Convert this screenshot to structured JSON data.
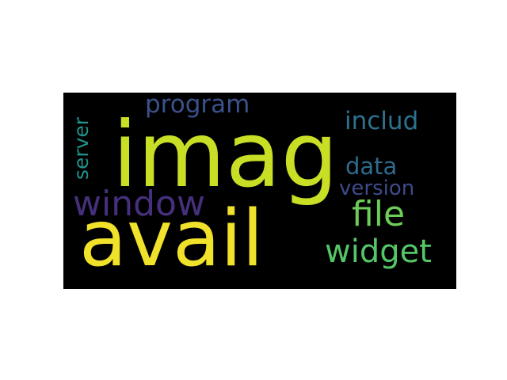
{
  "wordcloud": {
    "background": "#000000",
    "words": [
      {
        "id": "imag",
        "text": "imag",
        "color": "#c8df25"
      },
      {
        "id": "avail",
        "text": "avail",
        "color": "#f0e12a"
      },
      {
        "id": "window",
        "text": "window",
        "color": "#46307e"
      },
      {
        "id": "file",
        "text": "file",
        "color": "#6ecd5a"
      },
      {
        "id": "widget",
        "text": "widget",
        "color": "#55c667"
      },
      {
        "id": "program",
        "text": "program",
        "color": "#3b528b"
      },
      {
        "id": "includ",
        "text": "includ",
        "color": "#2c728e"
      },
      {
        "id": "data",
        "text": "data",
        "color": "#2f6b8e"
      },
      {
        "id": "version",
        "text": "version",
        "color": "#3e4a89"
      },
      {
        "id": "server",
        "text": "server",
        "color": "#21918c"
      }
    ]
  }
}
